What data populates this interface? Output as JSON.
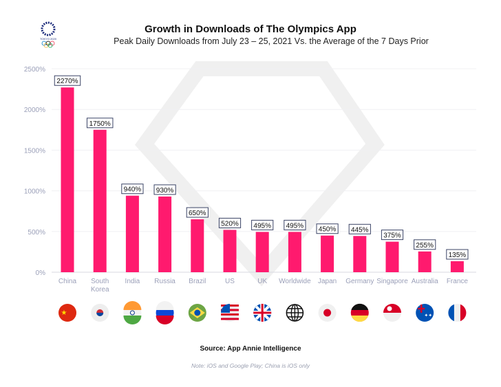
{
  "header": {
    "title": "Growth in Downloads of The Olympics App",
    "subtitle": "Peak Daily Downloads from July 23 – 25, 2021 Vs. the Average of the 7 Days Prior",
    "logo_text": "TOKYO 2020"
  },
  "footer": {
    "source": "Source: App Annie Intelligence",
    "note": "Note: iOS and Google Play; China is iOS only"
  },
  "colors": {
    "bar": "#ff1a6e",
    "axis_text": "#9a9fb8",
    "label_border": "#3b4466"
  },
  "chart_data": {
    "type": "bar",
    "title": "Growth in Downloads of The Olympics App",
    "subtitle": "Peak Daily Downloads from July 23 – 25, 2021 Vs. the Average of the 7 Days Prior",
    "categories": [
      "China",
      "South Korea",
      "India",
      "Russia",
      "Brazil",
      "US",
      "UK",
      "Worldwide",
      "Japan",
      "Germany",
      "Singapore",
      "Australia",
      "France"
    ],
    "values": [
      2270,
      1750,
      940,
      930,
      650,
      520,
      495,
      495,
      450,
      445,
      375,
      255,
      135
    ],
    "data_labels": [
      "2270%",
      "1750%",
      "940%",
      "930%",
      "650%",
      "520%",
      "495%",
      "495%",
      "450%",
      "445%",
      "375%",
      "255%",
      "135%"
    ],
    "yticks": [
      "0%",
      "500%",
      "1000%",
      "1500%",
      "2000%",
      "2500%"
    ],
    "ytick_values": [
      0,
      500,
      1000,
      1500,
      2000,
      2500
    ],
    "ylim": [
      0,
      2500
    ],
    "grid": true,
    "flags": [
      "china-flag",
      "south-korea-flag",
      "india-flag",
      "russia-flag",
      "brazil-flag",
      "us-flag",
      "uk-flag",
      "globe",
      "japan-flag",
      "germany-flag",
      "singapore-flag",
      "australia-flag",
      "france-flag"
    ]
  }
}
